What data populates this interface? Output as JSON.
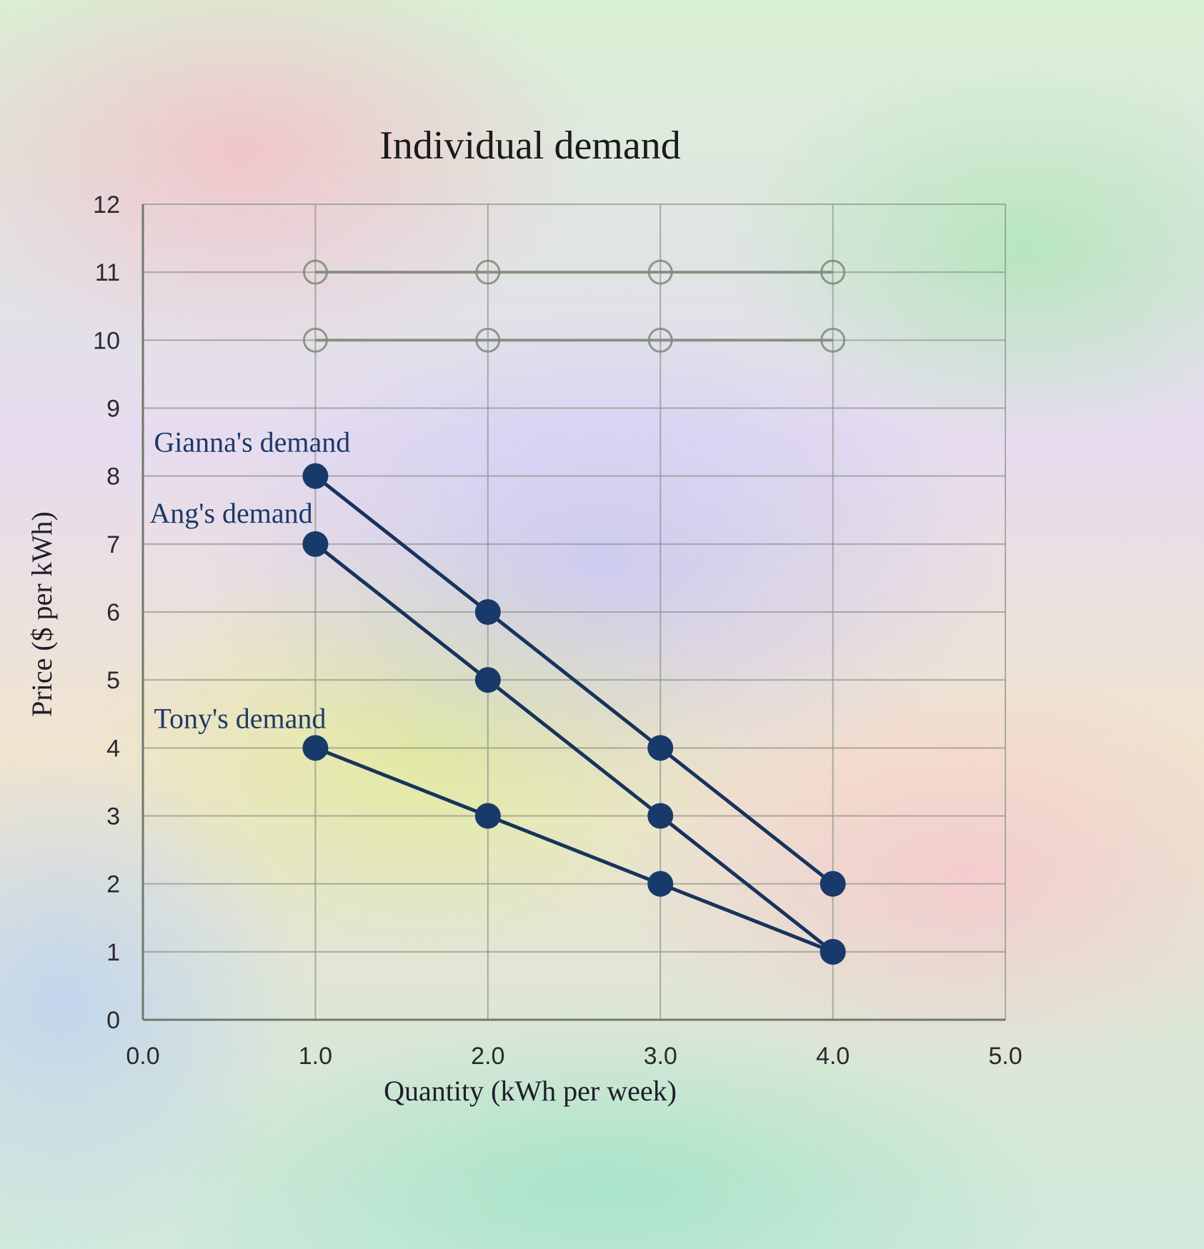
{
  "chart_data": {
    "type": "line",
    "title": "Individual demand",
    "xlabel": "Quantity (kWh per week)",
    "ylabel": "Price ($ per kWh)",
    "xlim": [
      0,
      5
    ],
    "ylim": [
      0,
      12
    ],
    "x_ticks": [
      "0.0",
      "1.0",
      "2.0",
      "3.0",
      "4.0",
      "5.0"
    ],
    "y_ticks": [
      "0",
      "1",
      "2",
      "3",
      "4",
      "5",
      "6",
      "7",
      "8",
      "9",
      "10",
      "11",
      "12"
    ],
    "grid": true,
    "series": [
      {
        "name": "Gianna's demand",
        "x": [
          1,
          2,
          3,
          4
        ],
        "y": [
          8,
          6,
          4,
          2
        ]
      },
      {
        "name": "Ang's demand",
        "x": [
          1,
          2,
          3,
          4
        ],
        "y": [
          7,
          5,
          3,
          1
        ]
      },
      {
        "name": "Tony's demand",
        "x": [
          1,
          2,
          3,
          4
        ],
        "y": [
          4,
          3,
          2,
          1
        ]
      }
    ],
    "reference_lines": [
      {
        "x": [
          1,
          2,
          3,
          4
        ],
        "y": [
          11,
          11,
          11,
          11
        ],
        "marker": "open-circle"
      },
      {
        "x": [
          1,
          2,
          3,
          4
        ],
        "y": [
          10,
          10,
          10,
          10
        ],
        "marker": "open-circle"
      }
    ],
    "colors": {
      "series": "#183a6a",
      "reference": "#7d8a78",
      "grid": "#8f9a8c"
    }
  }
}
